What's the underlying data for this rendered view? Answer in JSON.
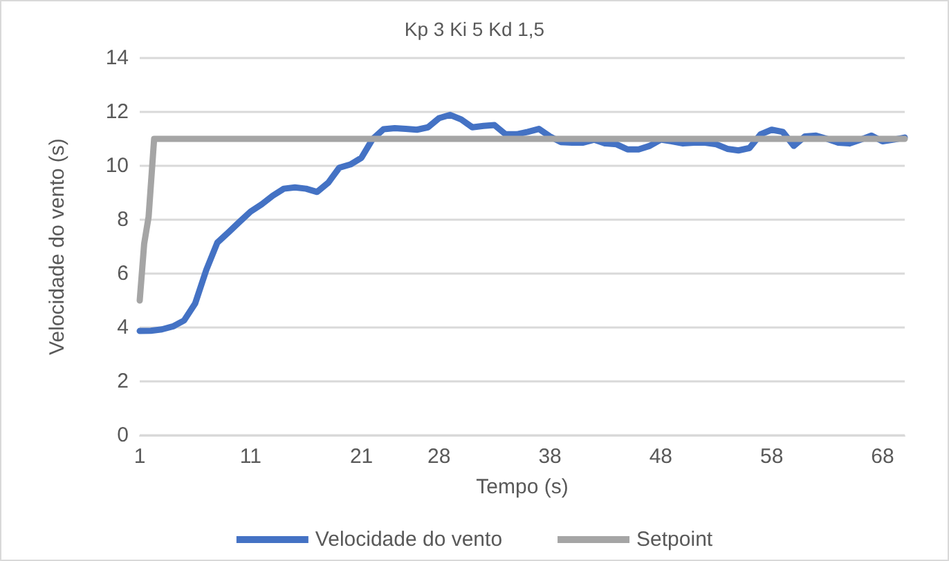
{
  "chart_data": {
    "type": "line",
    "title": "Kp 3 Ki 5 Kd 1,5",
    "xlabel": "Tempo (s)",
    "ylabel": "Velocidade do vento (s)",
    "x": [
      1,
      2,
      3,
      4,
      5,
      6,
      7,
      8,
      9,
      10,
      11,
      12,
      13,
      14,
      15,
      16,
      17,
      18,
      19,
      20,
      21,
      22,
      23,
      24,
      25,
      26,
      27,
      28,
      29,
      30,
      31,
      32,
      33,
      34,
      35,
      36,
      37,
      38,
      39,
      40,
      41,
      42,
      43,
      44,
      45,
      46,
      47,
      48,
      49,
      50,
      51,
      52,
      53,
      54,
      55,
      56,
      57,
      58,
      59,
      60,
      61,
      62,
      63,
      64,
      65,
      66,
      67,
      68,
      69,
      70
    ],
    "series": [
      {
        "name": "Velocidade do vento",
        "color": "#4472c4",
        "values": [
          3.87,
          3.88,
          3.93,
          4.04,
          4.26,
          4.89,
          6.13,
          7.15,
          7.53,
          7.92,
          8.3,
          8.57,
          8.89,
          9.15,
          9.2,
          9.15,
          9.03,
          9.37,
          9.93,
          10.05,
          10.3,
          10.99,
          11.36,
          11.4,
          11.37,
          11.34,
          11.43,
          11.77,
          11.89,
          11.72,
          11.43,
          11.48,
          11.51,
          11.17,
          11.17,
          11.26,
          11.37,
          11.09,
          10.88,
          10.86,
          10.86,
          10.97,
          10.83,
          10.8,
          10.61,
          10.61,
          10.74,
          10.97,
          10.91,
          10.83,
          10.86,
          10.86,
          10.8,
          10.63,
          10.57,
          10.66,
          11.17,
          11.34,
          11.26,
          10.74,
          11.09,
          11.12,
          11,
          10.86,
          10.83,
          10.97,
          11.12,
          10.91,
          10.97,
          11.05
        ]
      },
      {
        "name": "Setpoint",
        "color": "#a5a5a5",
        "x": [
          1,
          1.4,
          1.8,
          2.3,
          70
        ],
        "values": [
          5,
          7.1,
          8.1,
          11,
          11
        ]
      }
    ],
    "xlim": [
      1,
      70
    ],
    "xticks": [
      1,
      11,
      21,
      28,
      38,
      48,
      58,
      68
    ],
    "ylim": [
      0,
      14
    ],
    "yticks": [
      0,
      2,
      4,
      6,
      8,
      10,
      12,
      14
    ],
    "grid": "y",
    "legend": "bottom",
    "marker": "none",
    "line_style": "solid"
  }
}
